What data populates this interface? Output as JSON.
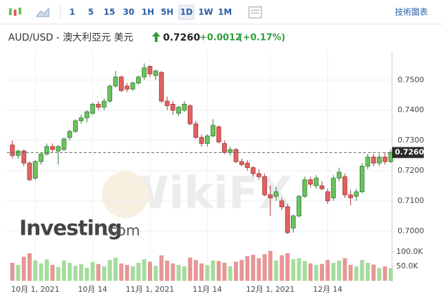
{
  "toolbar": {
    "intervals": [
      "1",
      "5",
      "15",
      "30",
      "1H",
      "5H",
      "1D",
      "1W",
      "1M"
    ],
    "active_interval": 6,
    "right_link": "技術圖表"
  },
  "header": {
    "symbol": "AUD/USD - 澳大利亞元 美元",
    "change": "+0.0012",
    "change_pct": "(+0.17%)"
  },
  "logo": {
    "name": "Investing",
    "suffix": ".com"
  },
  "watermark": "WikiFX",
  "chart_data": {
    "type": "candlestick",
    "categories": [
      null,
      null,
      null,
      null,
      "10月 1, 2021",
      null,
      null,
      null,
      null,
      null,
      null,
      null,
      null,
      null,
      "10月 14",
      null,
      null,
      null,
      null,
      null,
      null,
      null,
      null,
      null,
      "11月 1, 2021",
      null,
      null,
      null,
      null,
      null,
      null,
      null,
      null,
      null,
      "11月 14",
      null,
      null,
      null,
      null,
      null,
      null,
      null,
      null,
      null,
      null,
      "12月 1, 2021",
      null,
      null,
      null,
      null,
      null,
      null,
      null,
      null,
      null,
      "12月 14",
      null,
      null,
      null,
      null,
      null,
      null,
      null,
      null,
      null,
      null,
      null
    ],
    "ohlc": [
      [
        0.7285,
        0.73,
        0.724,
        0.725
      ],
      [
        0.725,
        0.727,
        0.724,
        0.7265
      ],
      [
        0.7265,
        0.727,
        0.7215,
        0.7225
      ],
      [
        0.7225,
        0.723,
        0.7165,
        0.717
      ],
      [
        0.7175,
        0.7235,
        0.717,
        0.723
      ],
      [
        0.723,
        0.726,
        0.722,
        0.7255
      ],
      [
        0.7255,
        0.729,
        0.725,
        0.728
      ],
      [
        0.728,
        0.729,
        0.726,
        0.727
      ],
      [
        0.7265,
        0.7285,
        0.722,
        0.728
      ],
      [
        0.727,
        0.731,
        0.7265,
        0.7305
      ],
      [
        0.731,
        0.7335,
        0.73,
        0.733
      ],
      [
        0.733,
        0.737,
        0.7325,
        0.7365
      ],
      [
        0.7365,
        0.7385,
        0.7355,
        0.7375
      ],
      [
        0.7375,
        0.74,
        0.736,
        0.7395
      ],
      [
        0.739,
        0.7425,
        0.7385,
        0.742
      ],
      [
        0.742,
        0.743,
        0.74,
        0.741
      ],
      [
        0.741,
        0.744,
        0.74,
        0.743
      ],
      [
        0.743,
        0.7485,
        0.7425,
        0.748
      ],
      [
        0.748,
        0.753,
        0.7475,
        0.751
      ],
      [
        0.751,
        0.7515,
        0.746,
        0.7465
      ],
      [
        0.748,
        0.749,
        0.746,
        0.747
      ],
      [
        0.747,
        0.7495,
        0.7465,
        0.749
      ],
      [
        0.749,
        0.7515,
        0.7485,
        0.751
      ],
      [
        0.751,
        0.7555,
        0.75,
        0.754
      ],
      [
        0.7545,
        0.755,
        0.751,
        0.752
      ],
      [
        0.7515,
        0.7535,
        0.75,
        0.753
      ],
      [
        0.7525,
        0.753,
        0.7425,
        0.743
      ],
      [
        0.743,
        0.7445,
        0.74,
        0.7415
      ],
      [
        0.742,
        0.743,
        0.7385,
        0.74
      ],
      [
        0.739,
        0.7415,
        0.738,
        0.741
      ],
      [
        0.74,
        0.743,
        0.7395,
        0.742
      ],
      [
        0.7415,
        0.742,
        0.735,
        0.7355
      ],
      [
        0.7355,
        0.7365,
        0.7305,
        0.731
      ],
      [
        0.731,
        0.732,
        0.728,
        0.729
      ],
      [
        0.729,
        0.732,
        0.728,
        0.7315
      ],
      [
        0.7315,
        0.737,
        0.731,
        0.735
      ],
      [
        0.7345,
        0.735,
        0.729,
        0.7295
      ],
      [
        0.729,
        0.73,
        0.7255,
        0.726
      ],
      [
        0.726,
        0.728,
        0.725,
        0.727
      ],
      [
        0.727,
        0.7275,
        0.7225,
        0.723
      ],
      [
        0.723,
        0.724,
        0.7215,
        0.722
      ],
      [
        0.7225,
        0.7235,
        0.72,
        0.721
      ],
      [
        0.721,
        0.7215,
        0.718,
        0.719
      ],
      [
        0.719,
        0.7205,
        0.717,
        0.718
      ],
      [
        0.718,
        0.719,
        0.7115,
        0.712
      ],
      [
        0.712,
        0.715,
        0.705,
        0.711
      ],
      [
        0.7115,
        0.7145,
        0.71,
        0.713
      ],
      [
        0.71,
        0.711,
        0.707,
        0.708
      ],
      [
        0.708,
        0.709,
        0.699,
        0.6995
      ],
      [
        0.701,
        0.7055,
        0.6995,
        0.705
      ],
      [
        0.705,
        0.712,
        0.7045,
        0.7115
      ],
      [
        0.7115,
        0.718,
        0.711,
        0.717
      ],
      [
        0.717,
        0.718,
        0.7145,
        0.7155
      ],
      [
        0.715,
        0.7185,
        0.714,
        0.7175
      ],
      [
        0.715,
        0.7165,
        0.7135,
        0.714
      ],
      [
        0.713,
        0.714,
        0.709,
        0.71
      ],
      [
        0.711,
        0.7185,
        0.71,
        0.7175
      ],
      [
        0.7175,
        0.721,
        0.7165,
        0.7195
      ],
      [
        0.718,
        0.719,
        0.711,
        0.712
      ],
      [
        0.712,
        0.7135,
        0.7085,
        0.711
      ],
      [
        0.7115,
        0.714,
        0.71,
        0.713
      ],
      [
        0.713,
        0.7225,
        0.7125,
        0.7215
      ],
      [
        0.7215,
        0.7255,
        0.7205,
        0.7245
      ],
      [
        0.7245,
        0.7255,
        0.7215,
        0.7225
      ],
      [
        0.7225,
        0.7255,
        0.7215,
        0.7245
      ],
      [
        0.7245,
        0.726,
        0.722,
        0.723
      ],
      [
        0.723,
        0.727,
        0.7225,
        0.726
      ]
    ],
    "volume": [
      62000,
      55000,
      83000,
      95000,
      70000,
      60000,
      74000,
      55000,
      48000,
      70000,
      62000,
      52000,
      58000,
      45000,
      65000,
      58000,
      50000,
      72000,
      80000,
      60000,
      55000,
      50000,
      62000,
      75000,
      66000,
      52000,
      88000,
      70000,
      60000,
      55000,
      50000,
      80000,
      72000,
      60000,
      54000,
      70000,
      68000,
      62000,
      50000,
      66000,
      72000,
      85000,
      90000,
      78000,
      92000,
      103000,
      70000,
      88000,
      95000,
      75000,
      78000,
      68000,
      60000,
      55000,
      58000,
      72000,
      62000,
      70000,
      78000,
      55000,
      50000,
      72000,
      62000,
      56000,
      44000,
      50000,
      44000
    ],
    "up_color": "#6cc25c",
    "up_edge": "#2e7d32",
    "down_color": "#e06262",
    "down_edge": "#a83232",
    "vol_up_color": "#a6dc9e",
    "vol_down_color": "#e69696",
    "ylim": [
      0.6963,
      0.7594
    ],
    "yticks": [
      {
        "value": 0.7,
        "label": "0.7000"
      },
      {
        "value": 0.71,
        "label": "0.7100"
      },
      {
        "value": 0.72,
        "label": "0.7200"
      },
      {
        "value": 0.73,
        "label": "0.7300"
      },
      {
        "value": 0.74,
        "label": "0.7400"
      },
      {
        "value": 0.75,
        "label": "0.7500"
      }
    ],
    "y2lim": [
      0,
      126000
    ],
    "y2ticks": [
      {
        "value": 50000,
        "label": "50.0K"
      },
      {
        "value": 100000,
        "label": "100.0K"
      }
    ],
    "last_price": {
      "value": 0.726,
      "label": "0.7260"
    },
    "grid": true
  }
}
